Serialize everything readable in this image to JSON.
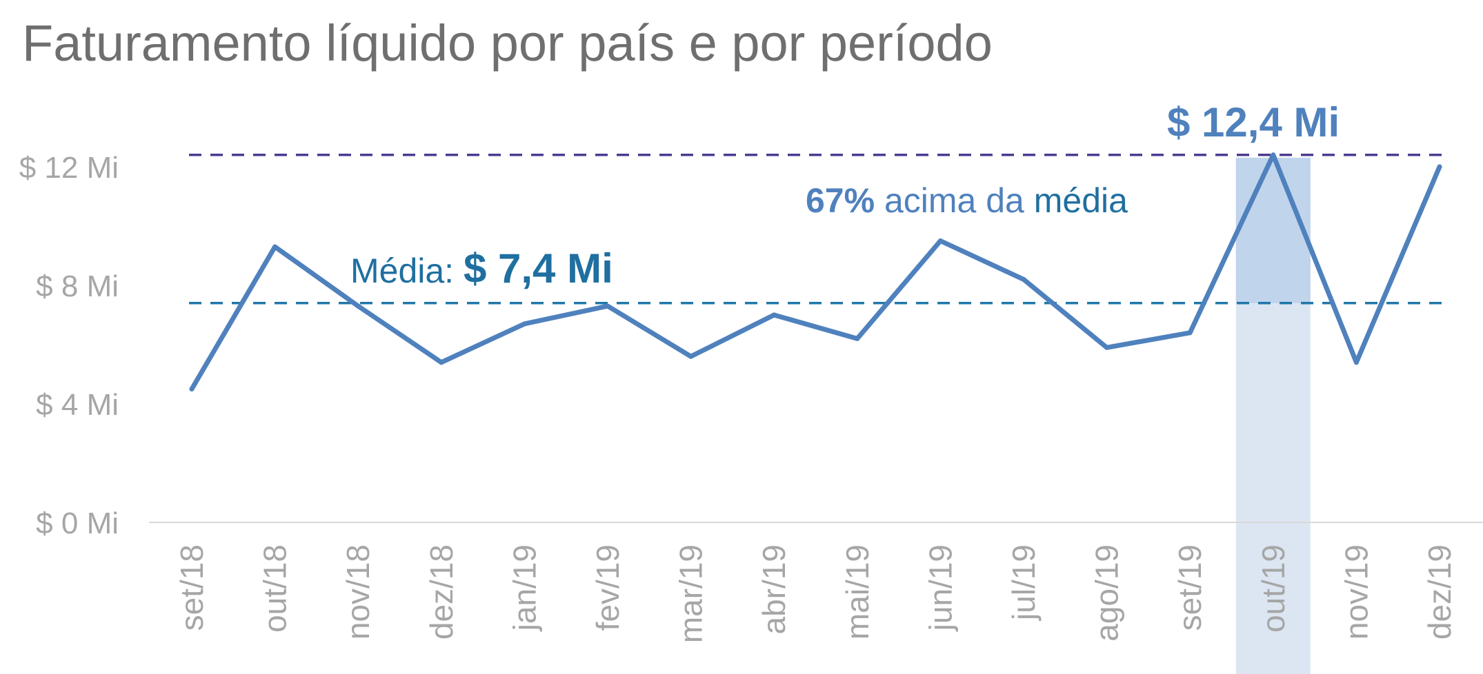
{
  "chart_data": {
    "type": "line",
    "title": "Faturamento líquido por país e por período",
    "xlabel": "",
    "ylabel": "",
    "categories": [
      "set/18",
      "out/18",
      "nov/18",
      "dez/18",
      "jan/19",
      "fev/19",
      "mar/19",
      "abr/19",
      "mai/19",
      "jun/19",
      "jul/19",
      "ago/19",
      "set/19",
      "out/19",
      "nov/19",
      "dez/19"
    ],
    "series": [
      {
        "name": "",
        "values": [
          4.5,
          9.3,
          7.3,
          5.4,
          6.7,
          7.3,
          5.6,
          7.0,
          6.2,
          9.5,
          8.2,
          5.9,
          6.4,
          12.4,
          5.4,
          12.0
        ],
        "color": "#4f81bd"
      }
    ],
    "ylim": [
      0,
      12
    ],
    "y_ticks": [
      {
        "value": 0,
        "label": "$ 0 Mi"
      },
      {
        "value": 4,
        "label": "$ 4 Mi"
      },
      {
        "value": 8,
        "label": "$ 8 Mi"
      },
      {
        "value": 12,
        "label": "$ 12 Mi"
      }
    ],
    "grid": false,
    "highlight": {
      "category": "out/19",
      "band_color": "#dce6f2",
      "range_color": "#c0d4ec"
    },
    "reference_lines": [
      {
        "id": "average",
        "value": 7.4,
        "color": "#1f77a8"
      },
      {
        "id": "max",
        "value": 12.4,
        "color": "#4b3b8f"
      }
    ],
    "annotations": {
      "average_label": "Média: ",
      "average_value": "$ 7,4 Mi",
      "max_value": "$ 12,4 Mi",
      "pct_value": "67%",
      "pct_text": " acima da ",
      "pct_word": "média"
    },
    "colors": {
      "line": "#4f81bd",
      "average_text": "#1f6fa0",
      "max_text": "#4f81bd",
      "axis_text": "#a6a6a6",
      "title": "#6f6f6f",
      "baseline": "#d9d9d9"
    }
  }
}
